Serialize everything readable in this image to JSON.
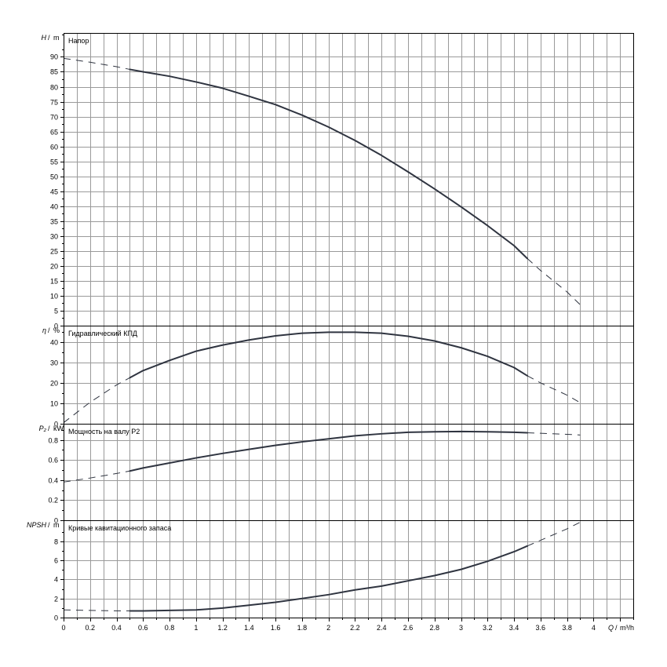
{
  "chart_data": {
    "type": "line",
    "x_axis": {
      "symbol": "Q",
      "unit": "m³/h",
      "range": [
        0,
        4.3
      ],
      "tick_labels": [
        "0",
        "0.2",
        "0.4",
        "0.6",
        "0.8",
        "1",
        "1.2",
        "1.4",
        "1.6",
        "1.8",
        "2",
        "2.2",
        "2.4",
        "2.6",
        "2.8",
        "3",
        "3.2",
        "3.4",
        "3.6",
        "3.8",
        "4"
      ],
      "tick_values": [
        0,
        0.2,
        0.4,
        0.6,
        0.8,
        1,
        1.2,
        1.4,
        1.6,
        1.8,
        2,
        2.2,
        2.4,
        2.6,
        2.8,
        3,
        3.2,
        3.4,
        3.6,
        3.8,
        4
      ],
      "grid_step": 0.1
    },
    "solid_range": [
      0.5,
      3.5
    ],
    "panels": [
      {
        "id": "head",
        "title": "Напор",
        "y_symbol": "H",
        "y_unit": "m",
        "ylim": [
          0,
          98
        ],
        "y_tick_labels": [
          "0",
          "5",
          "10",
          "15",
          "20",
          "25",
          "30",
          "35",
          "40",
          "45",
          "50",
          "55",
          "60",
          "65",
          "70",
          "75",
          "80",
          "85",
          "90"
        ],
        "y_tick_values": [
          0,
          5,
          10,
          15,
          20,
          25,
          30,
          35,
          40,
          45,
          50,
          55,
          60,
          65,
          70,
          75,
          80,
          85,
          90
        ],
        "grid": true,
        "series": [
          {
            "x": [
              0,
              0.2,
              0.4,
              0.5,
              0.6,
              0.8,
              1.0,
              1.2,
              1.4,
              1.6,
              1.8,
              2.0,
              2.2,
              2.4,
              2.6,
              2.8,
              3.0,
              3.2,
              3.4,
              3.5,
              3.6,
              3.8,
              3.9
            ],
            "y": [
              89.5,
              88.2,
              86.7,
              85.8,
              85.0,
              83.5,
              81.6,
              79.5,
              76.8,
              74.0,
              70.5,
              66.5,
              62.0,
              57.0,
              51.5,
              45.8,
              39.8,
              33.5,
              26.8,
              22.5,
              18.5,
              11.3,
              7.0
            ]
          }
        ]
      },
      {
        "id": "efficiency",
        "title": "Гидравлический КПД",
        "y_symbol": "η",
        "y_unit": "%",
        "ylim": [
          0,
          48
        ],
        "y_tick_labels": [
          "0",
          "10",
          "20",
          "30",
          "40"
        ],
        "y_tick_values": [
          0,
          10,
          20,
          30,
          40
        ],
        "grid": true,
        "series": [
          {
            "x": [
              0,
              0.2,
              0.4,
              0.5,
              0.6,
              0.8,
              1.0,
              1.2,
              1.4,
              1.6,
              1.8,
              2.0,
              2.2,
              2.4,
              2.6,
              2.8,
              3.0,
              3.2,
              3.4,
              3.5,
              3.6,
              3.8,
              3.9
            ],
            "y": [
              0.5,
              10.5,
              19.0,
              22.5,
              26.0,
              31.0,
              35.5,
              38.5,
              41.0,
              43.0,
              44.3,
              44.8,
              44.8,
              44.3,
              42.8,
              40.5,
              37.2,
              33.0,
              27.5,
              23.5,
              20.0,
              14.0,
              10.3
            ]
          }
        ]
      },
      {
        "id": "power",
        "title": "Мощность на валу P2",
        "y_symbol": "P₂",
        "y_unit": "kW",
        "ylim": [
          0,
          0.96
        ],
        "y_tick_labels": [
          "0",
          "0.2",
          "0.4",
          "0.6",
          "0.8"
        ],
        "y_tick_values": [
          0,
          0.2,
          0.4,
          0.6,
          0.8
        ],
        "grid": true,
        "series": [
          {
            "x": [
              0,
              0.2,
              0.4,
              0.5,
              0.6,
              0.8,
              1.0,
              1.2,
              1.4,
              1.6,
              1.8,
              2.0,
              2.2,
              2.4,
              2.6,
              2.8,
              3.0,
              3.2,
              3.4,
              3.5,
              3.6,
              3.8,
              3.9
            ],
            "y": [
              0.38,
              0.42,
              0.465,
              0.49,
              0.52,
              0.57,
              0.62,
              0.665,
              0.705,
              0.745,
              0.78,
              0.81,
              0.84,
              0.86,
              0.875,
              0.88,
              0.883,
              0.88,
              0.875,
              0.87,
              0.865,
              0.855,
              0.848
            ]
          }
        ]
      },
      {
        "id": "npsh",
        "title": "Кривые кавитационного запаса",
        "y_symbol": "NPSH",
        "y_unit": "m",
        "ylim": [
          0,
          10.2
        ],
        "y_tick_labels": [
          "0",
          "2",
          "4",
          "6",
          "8"
        ],
        "y_tick_values": [
          0,
          2,
          4,
          6,
          8
        ],
        "grid": true,
        "series": [
          {
            "x": [
              0,
              0.2,
              0.4,
              0.5,
              0.6,
              0.8,
              1.0,
              1.2,
              1.4,
              1.6,
              1.8,
              2.0,
              2.2,
              2.4,
              2.6,
              2.8,
              3.0,
              3.2,
              3.4,
              3.5,
              3.6,
              3.8,
              3.9
            ],
            "y": [
              0.8,
              0.75,
              0.7,
              0.7,
              0.7,
              0.75,
              0.8,
              1.0,
              1.3,
              1.6,
              2.0,
              2.4,
              2.9,
              3.3,
              3.85,
              4.4,
              5.05,
              5.9,
              6.9,
              7.5,
              8.1,
              9.3,
              10.0
            ]
          }
        ]
      }
    ]
  }
}
